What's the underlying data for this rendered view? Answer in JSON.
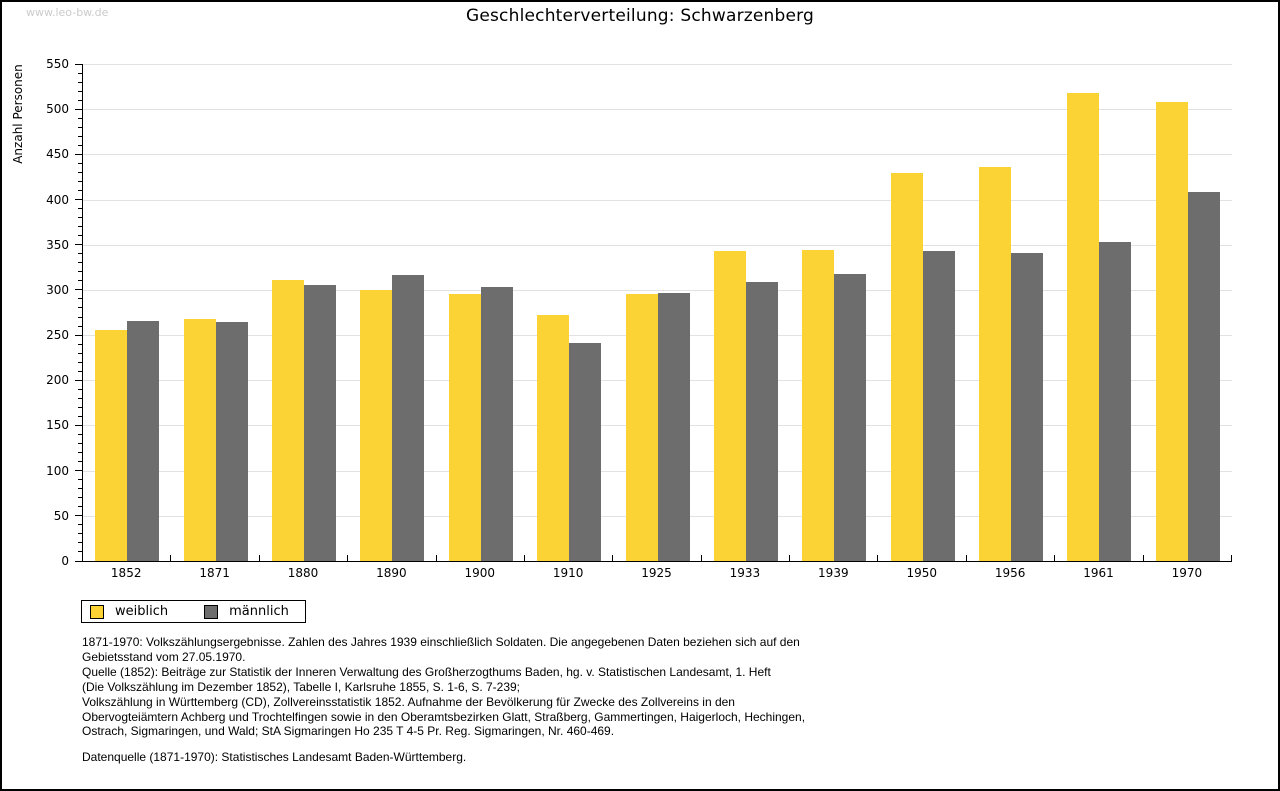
{
  "watermark": "www.leo-bw.de",
  "title": "Geschlechterverteilung: Schwarzenberg",
  "chart_data": {
    "type": "bar",
    "title": "Geschlechterverteilung: Schwarzenberg",
    "xlabel": "",
    "ylabel": "Anzahl Personen",
    "ylim": [
      0,
      550
    ],
    "ytick_step": 50,
    "y_minor_tick_step": 10,
    "grid": true,
    "legend_position": "bottom-left",
    "categories": [
      "1852",
      "1871",
      "1880",
      "1890",
      "1900",
      "1910",
      "1925",
      "1933",
      "1939",
      "1950",
      "1956",
      "1961",
      "1970"
    ],
    "series": [
      {
        "name": "weiblich",
        "color": "#FBD335",
        "values": [
          256,
          268,
          311,
          300,
          295,
          272,
          295,
          343,
          344,
          429,
          436,
          518,
          508
        ]
      },
      {
        "name": "männlich",
        "color": "#6D6D6D",
        "values": [
          266,
          264,
          305,
          316,
          303,
          241,
          297,
          309,
          318,
          343,
          341,
          353,
          408
        ]
      }
    ]
  },
  "footnotes": [
    "1871-1970: Volkszählungsergebnisse. Zahlen des Jahres 1939 einschließlich Soldaten. Die angegebenen Daten beziehen sich auf den",
    "Gebietsstand vom 27.05.1970.",
    "Quelle (1852): Beiträge zur Statistik der Inneren Verwaltung des Großherzogthums Baden, hg. v. Statistischen Landesamt, 1. Heft",
    "(Die Volkszählung im Dezember 1852), Tabelle I, Karlsruhe 1855, S. 1-6, S. 7-239;",
    "Volkszählung in Württemberg (CD), Zollvereinsstatistik 1852. Aufnahme der Bevölkerung für Zwecke des Zollvereins in den",
    "Obervogteiämtern Achberg und Trochtelfingen sowie in den Oberamtsbezirken Glatt, Straßberg, Gammertingen, Haigerloch, Hechingen,",
    "Ostrach, Sigmaringen, und Wald; StA Sigmaringen Ho 235 T 4-5 Pr. Reg. Sigmaringen, Nr. 460-469."
  ],
  "source_note": "Datenquelle (1871-1970): Statistisches Landesamt Baden-Württemberg.",
  "colors": {
    "weiblich": "#FBD335",
    "maennlich": "#6D6D6D",
    "gridline": "#E2E2E2",
    "axis": "#000000",
    "watermark": "#CBCBCB",
    "background": "#FFFFFF"
  }
}
